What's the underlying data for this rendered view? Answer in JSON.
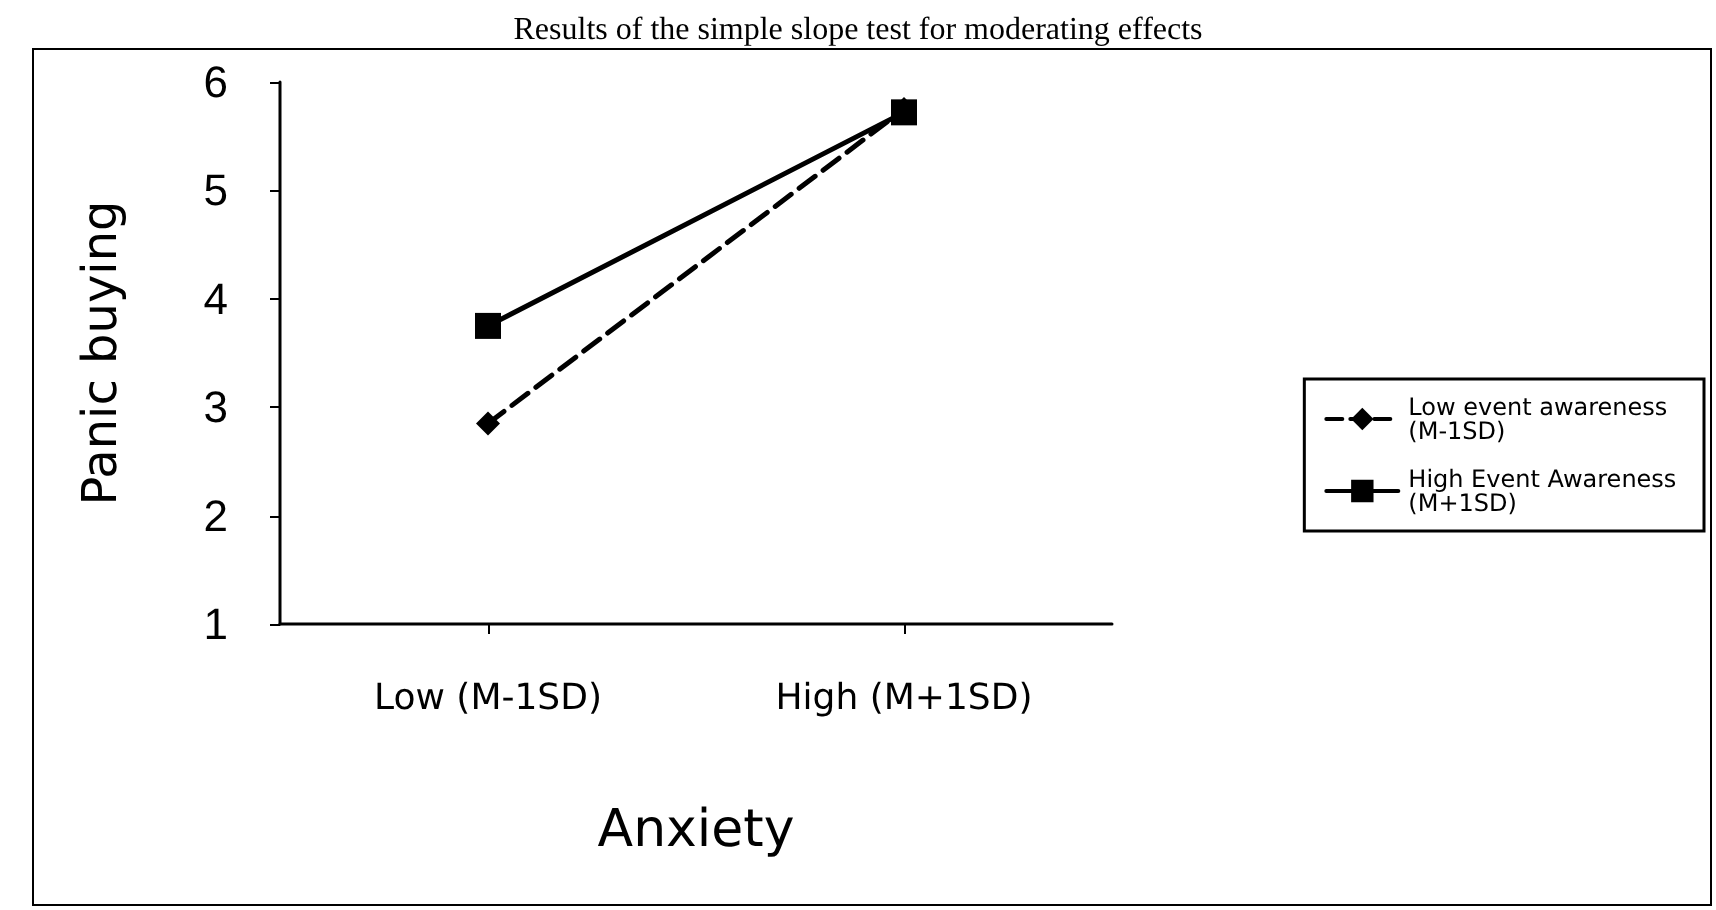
{
  "chart_data": {
    "type": "line",
    "title": "Results of the simple slope test for moderating effects",
    "xlabel": "Anxiety",
    "ylabel": "Panic buying",
    "categories": [
      "Low (M-1SD)",
      "High (M+1SD)"
    ],
    "series": [
      {
        "name": "Low event awareness (M-1SD)",
        "color": "#000000",
        "values": [
          2.85,
          5.75
        ],
        "marker": "diamond",
        "line_style": "dashed"
      },
      {
        "name": "High Event Awareness (M+1SD)",
        "color": "#000000",
        "values": [
          3.75,
          5.72
        ],
        "marker": "square",
        "line_style": "solid"
      }
    ],
    "ylim": [
      1,
      6
    ],
    "yticks": [
      1,
      2,
      3,
      4,
      5,
      6
    ],
    "grid": false,
    "legend": "right"
  }
}
